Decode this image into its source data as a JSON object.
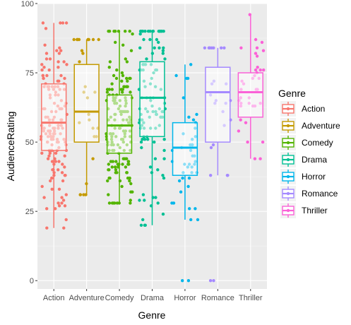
{
  "chart_data": {
    "type": "boxplot",
    "xlabel": "Genre",
    "ylabel": "AudienceRating",
    "ylim": [
      -3,
      100
    ],
    "yticks": [
      0,
      25,
      50,
      75,
      100
    ],
    "grid": true,
    "legend": {
      "title": "Genre",
      "position": "right"
    },
    "categories": [
      "Action",
      "Adventure",
      "Comedy",
      "Drama",
      "Horror",
      "Romance",
      "Thriller"
    ],
    "colors": {
      "Action": "#F8766D",
      "Adventure": "#C49A00",
      "Comedy": "#53B400",
      "Drama": "#00C094",
      "Horror": "#00B6EB",
      "Romance": "#A58AFF",
      "Thriller": "#FB61D7"
    },
    "boxes": [
      {
        "genre": "Action",
        "q1": 47,
        "median": 57,
        "q3": 71,
        "whisker_low": 19,
        "whisker_high": 93,
        "outliers": []
      },
      {
        "genre": "Adventure",
        "q1": 50,
        "median": 61,
        "q3": 78,
        "whisker_low": 31,
        "whisker_high": 87,
        "outliers": []
      },
      {
        "genre": "Comedy",
        "q1": 46,
        "median": 56,
        "q3": 67,
        "whisker_low": 28,
        "whisker_high": 90,
        "outliers": []
      },
      {
        "genre": "Drama",
        "q1": 52,
        "median": 66,
        "q3": 79,
        "whisker_low": 20,
        "whisker_high": 90,
        "outliers": []
      },
      {
        "genre": "Horror",
        "q1": 38,
        "median": 48,
        "q3": 57,
        "whisker_low": 22,
        "whisker_high": 78,
        "outliers": [
          0,
          0
        ]
      },
      {
        "genre": "Romance",
        "q1": 50,
        "median": 68,
        "q3": 77,
        "whisker_low": 38,
        "whisker_high": 84,
        "outliers": [
          0,
          0
        ]
      },
      {
        "genre": "Thriller",
        "q1": 59,
        "median": 68,
        "q3": 75,
        "whisker_low": 44,
        "whisker_high": 96,
        "outliers": []
      }
    ],
    "points_per_genre": {
      "Action": 150,
      "Adventure": 26,
      "Comedy": 160,
      "Drama": 110,
      "Horror": 40,
      "Romance": 22,
      "Thriller": 36
    }
  }
}
